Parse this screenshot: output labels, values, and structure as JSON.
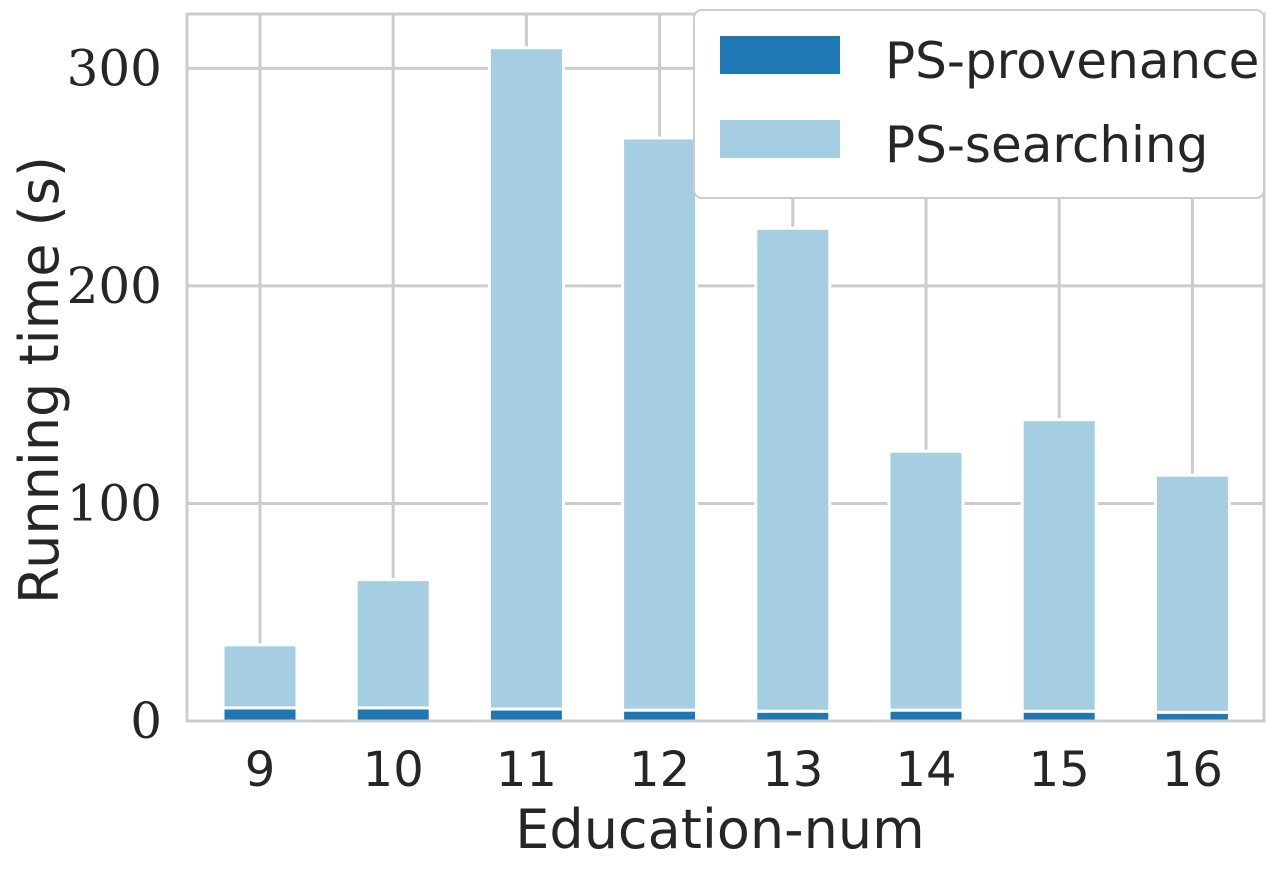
{
  "chart_data": {
    "type": "bar",
    "stacked": true,
    "categories": [
      "9",
      "10",
      "11",
      "12",
      "13",
      "14",
      "15",
      "16"
    ],
    "series": [
      {
        "name": "PS-provenance",
        "values": [
          6,
          6,
          5.5,
          5,
          4.5,
          5,
          4.5,
          4
        ]
      },
      {
        "name": "PS-searching",
        "values": [
          29,
          59,
          304,
          263,
          222,
          119,
          134,
          109
        ]
      }
    ],
    "colors": {
      "PS-provenance": "#1f77b4",
      "PS-searching": "#a6cee3"
    },
    "xlabel": "Education-num",
    "ylabel": "Running time (s)",
    "ylim": [
      0,
      325
    ],
    "yticks": [
      0,
      100,
      200,
      300
    ],
    "grid": true,
    "legend_position": "top-right"
  }
}
